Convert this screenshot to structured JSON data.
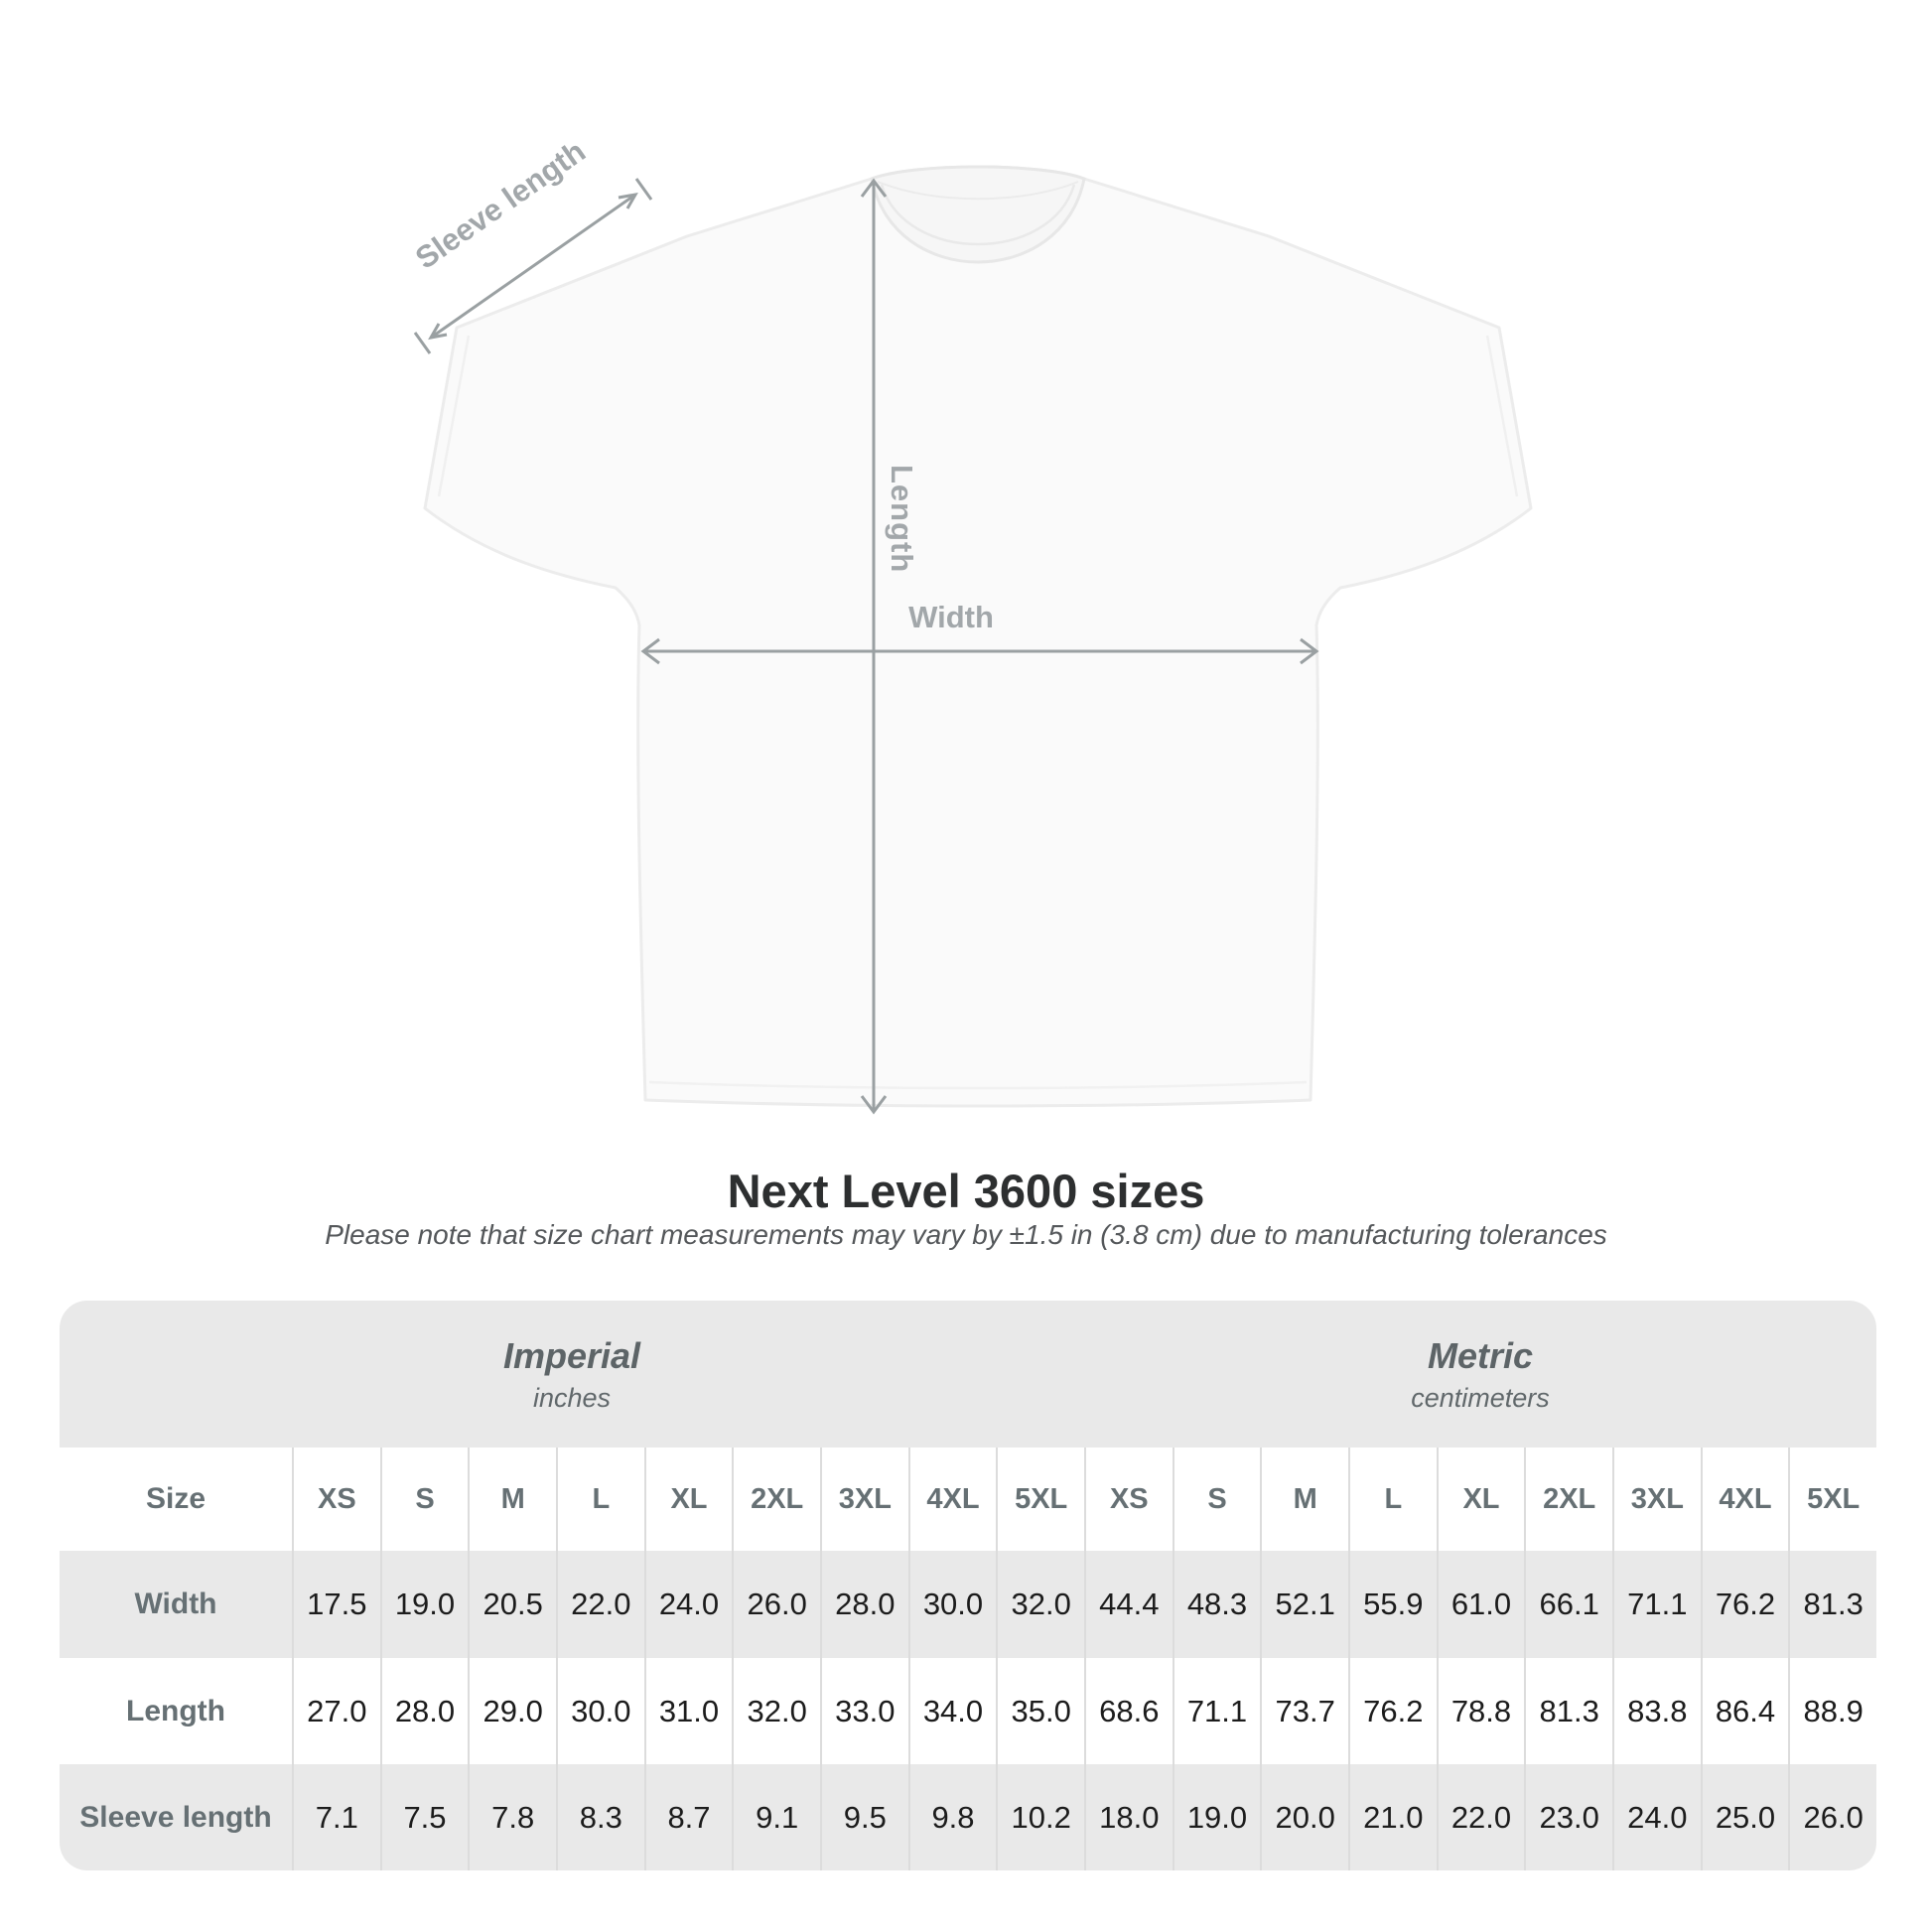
{
  "diagram": {
    "sleeve_length_label": "Sleeve length",
    "length_label": "Length",
    "width_label": "Width",
    "line_color": "#9aa0a2",
    "shirt_fill": "#fafafa",
    "shirt_outline": "#ececec"
  },
  "title": "Next Level 3600 sizes",
  "subtitle": "Please note that size chart measurements may vary by ±1.5 in (3.8 cm) due to manufacturing tolerances",
  "table": {
    "groups": [
      {
        "name": "Imperial",
        "unit": "inches"
      },
      {
        "name": "Metric",
        "unit": "centimeters"
      }
    ],
    "size_label": "Size",
    "sizes": [
      "XS",
      "S",
      "M",
      "L",
      "XL",
      "2XL",
      "3XL",
      "4XL",
      "5XL"
    ],
    "rows": [
      {
        "label": "Width",
        "imperial": [
          "17.5",
          "19.0",
          "20.5",
          "22.0",
          "24.0",
          "26.0",
          "28.0",
          "30.0",
          "32.0"
        ],
        "metric": [
          "44.4",
          "48.3",
          "52.1",
          "55.9",
          "61.0",
          "66.1",
          "71.1",
          "76.2",
          "81.3"
        ]
      },
      {
        "label": "Length",
        "imperial": [
          "27.0",
          "28.0",
          "29.0",
          "30.0",
          "31.0",
          "32.0",
          "33.0",
          "34.0",
          "35.0"
        ],
        "metric": [
          "68.6",
          "71.1",
          "73.7",
          "76.2",
          "78.8",
          "81.3",
          "83.8",
          "86.4",
          "88.9"
        ]
      },
      {
        "label": "Sleeve length",
        "imperial": [
          "7.1",
          "7.5",
          "7.8",
          "8.3",
          "8.7",
          "9.1",
          "9.5",
          "9.8",
          "10.2"
        ],
        "metric": [
          "18.0",
          "19.0",
          "20.0",
          "21.0",
          "22.0",
          "23.0",
          "24.0",
          "25.0",
          "26.0"
        ]
      }
    ],
    "colors": {
      "container_bg": "#e9e9e9",
      "stripe_bg": "#ffffff",
      "separator": "#dcdcdc",
      "header_text": "#667074",
      "value_text": "#1c1c1c"
    }
  }
}
